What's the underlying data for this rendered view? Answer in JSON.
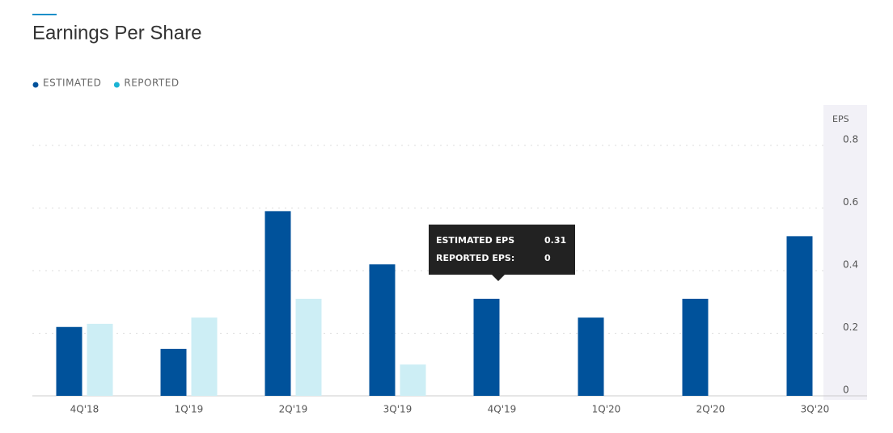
{
  "chart_data": {
    "type": "bar",
    "title": "Earnings Per Share",
    "y_axis_label": "EPS",
    "categories": [
      "4Q'18",
      "1Q'19",
      "2Q'19",
      "3Q'19",
      "4Q'19",
      "1Q'20",
      "2Q'20",
      "3Q'20"
    ],
    "series": [
      {
        "name": "ESTIMATED",
        "color": "#00529b",
        "legend_color": "#00529b",
        "values": [
          0.22,
          0.15,
          0.59,
          0.42,
          0.31,
          0.25,
          0.31,
          0.51
        ]
      },
      {
        "name": "REPORTED",
        "color": "#cdeef5",
        "legend_color": "#1ab3d4",
        "values": [
          0.23,
          0.25,
          0.31,
          0.1,
          0,
          null,
          null,
          null
        ]
      }
    ],
    "ylim": [
      0,
      0.8
    ],
    "yticks": [
      0,
      0.2,
      0.4,
      0.6,
      0.8
    ],
    "grid": true,
    "tooltip": {
      "labels": [
        "ESTIMATED EPS",
        "REPORTED EPS:"
      ],
      "values": [
        0.31,
        0
      ]
    }
  }
}
